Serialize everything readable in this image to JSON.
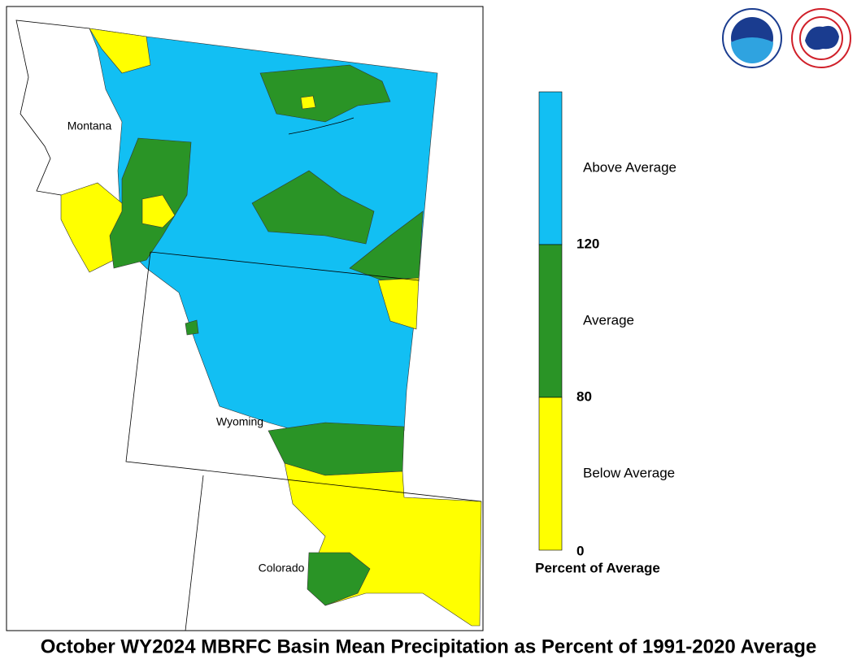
{
  "map": {
    "title": "October WY2024 MBRFC Basin Mean Precipitation as Percent of 1991-2020 Average",
    "state_labels": [
      "Montana",
      "Wyoming",
      "Colorado"
    ],
    "legend": {
      "title": "Percent of Average",
      "classes": [
        {
          "label": "Above Average",
          "color": "#12bff3"
        },
        {
          "label": "Average",
          "color": "#2a9426"
        },
        {
          "label": "Below Average",
          "color": "#ffff00"
        }
      ],
      "ticks": [
        120,
        80,
        0
      ]
    }
  }
}
